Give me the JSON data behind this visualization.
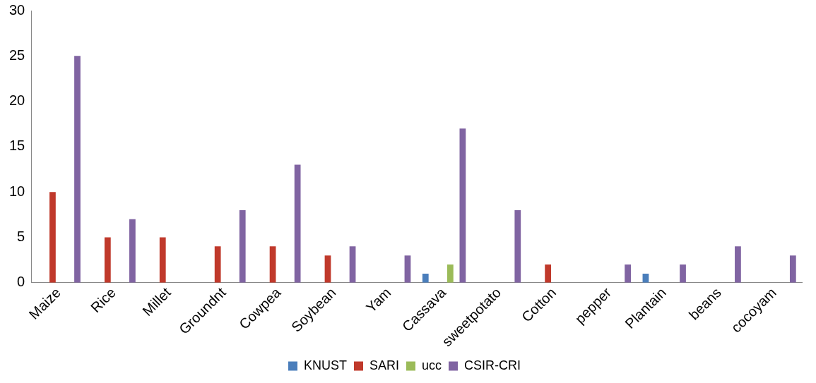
{
  "chart_data": {
    "type": "bar",
    "categories": [
      "Maize",
      "Rice",
      "Millet",
      "Groundnt",
      "Cowpea",
      "Soybean",
      "Yam",
      "Cassava",
      "sweetpotato",
      "Cotton",
      "pepper",
      "Plantain",
      "beans",
      "cocoyam"
    ],
    "series": [
      {
        "name": "KNUST",
        "color": "#4a7ebb",
        "values": [
          null,
          null,
          null,
          null,
          null,
          null,
          null,
          1,
          null,
          null,
          null,
          1,
          null,
          null
        ]
      },
      {
        "name": "SARI",
        "color": "#c0392b",
        "values": [
          10,
          5,
          5,
          4,
          4,
          3,
          null,
          null,
          null,
          2,
          null,
          null,
          null,
          null
        ]
      },
      {
        "name": "ucc",
        "color": "#9bbb59",
        "values": [
          null,
          null,
          null,
          null,
          null,
          null,
          null,
          2,
          null,
          null,
          null,
          null,
          null,
          null
        ]
      },
      {
        "name": "CSIR-CRI",
        "color": "#8064a2",
        "values": [
          25,
          7,
          null,
          8,
          13,
          4,
          3,
          17,
          8,
          null,
          2,
          2,
          4,
          3
        ]
      }
    ],
    "ylim": [
      0,
      30
    ],
    "yticks": [
      0,
      5,
      10,
      15,
      20,
      25,
      30
    ],
    "grid": false,
    "legend": "bottom"
  }
}
